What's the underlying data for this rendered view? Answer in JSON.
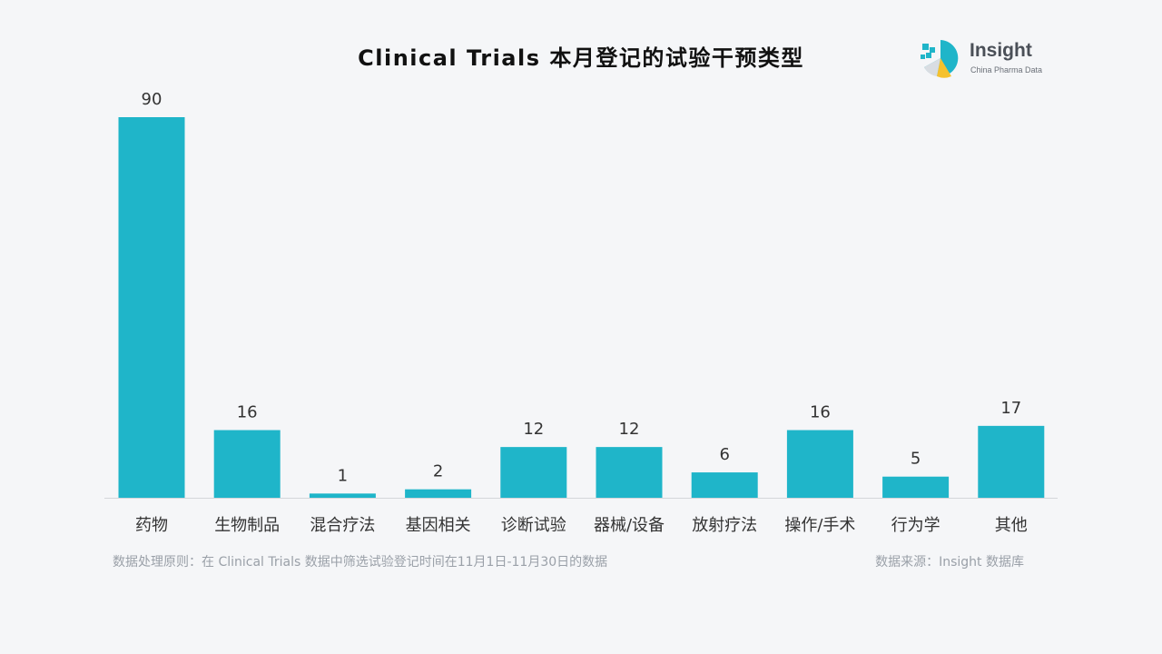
{
  "title": "Clinical Trials 本月登记的试验干预类型",
  "logo": {
    "name": "Insight",
    "tagline": "China Pharma Data",
    "icon": "insight-logo-icon"
  },
  "chart_data": {
    "type": "bar",
    "title": "Clinical Trials 本月登记的试验干预类型",
    "categories": [
      "药物",
      "生物制品",
      "混合疗法",
      "基因相关",
      "诊断试验",
      "器械/设备",
      "放射疗法",
      "操作/手术",
      "行为学",
      "其他"
    ],
    "values": [
      90,
      16,
      1,
      2,
      12,
      12,
      6,
      16,
      5,
      17
    ],
    "ylim": [
      0,
      90
    ],
    "grid": false,
    "legend": "none",
    "xlabel": "",
    "ylabel": ""
  },
  "colors": {
    "bar": "#1fb5c9",
    "baseline": "#d4d6da",
    "label": "#333333",
    "footnote": "#9aa0a8"
  },
  "footnotes": {
    "method": "数据处理原则：在 Clinical Trials 数据中筛选试验登记时间在11月1日-11月30日的数据",
    "source": "数据来源：Insight 数据库"
  }
}
